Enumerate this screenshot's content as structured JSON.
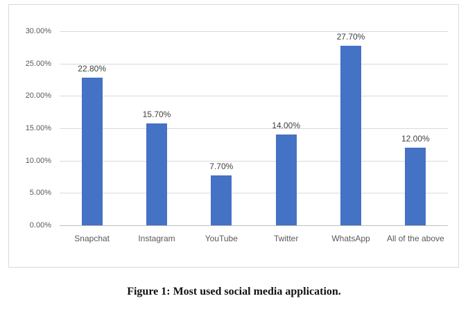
{
  "chart_data": {
    "type": "bar",
    "categories": [
      "Snapchat",
      "Instagram",
      "YouTube",
      "Twitter",
      "WhatsApp",
      "All of the above"
    ],
    "values": [
      22.8,
      15.7,
      7.7,
      14.0,
      27.7,
      12.0
    ],
    "data_labels": [
      "22.80%",
      "15.70%",
      "7.70%",
      "14.00%",
      "27.70%",
      "12.00%"
    ],
    "y_ticks": [
      "0.00%",
      "5.00%",
      "10.00%",
      "15.00%",
      "20.00%",
      "25.00%",
      "30.00%"
    ],
    "ylim": [
      0,
      30
    ],
    "y_tick_step": 5,
    "grid": true,
    "legend": "none",
    "title": "",
    "xlabel": "",
    "ylabel": "",
    "colors": {
      "bar": "#4472c4",
      "gridline": "#d9d9d9",
      "axis_line": "#bfbfbf",
      "tick_label": "#595959",
      "data_label": "#404040",
      "frame_border": "#d9d9d9"
    }
  },
  "caption": "Figure 1: Most used social media application."
}
